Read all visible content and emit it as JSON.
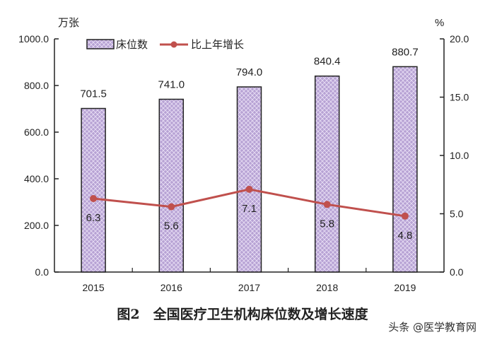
{
  "chart_data": {
    "type": "bar+line",
    "title": "图2　全国医疗卫生机构床位数及增长速度",
    "categories": [
      "2015",
      "2016",
      "2017",
      "2018",
      "2019"
    ],
    "series": [
      {
        "name": "床位数",
        "type": "bar",
        "axis": "left",
        "values": [
          701.5,
          741.0,
          794.0,
          840.4,
          880.7
        ],
        "labels": [
          "701.5",
          "741.0",
          "794.0",
          "840.4",
          "880.7"
        ],
        "color": "#b7a2d4"
      },
      {
        "name": "比上年增长",
        "type": "line",
        "axis": "right",
        "values": [
          6.3,
          5.6,
          7.1,
          5.8,
          4.8
        ],
        "labels": [
          "6.3",
          "5.6",
          "7.1",
          "5.8",
          "4.8"
        ],
        "color": "#c0504d"
      }
    ],
    "left_axis": {
      "unit": "万张",
      "ylim": [
        0,
        1000
      ],
      "ticks": [
        "0.0",
        "200.0",
        "400.0",
        "600.0",
        "800.0",
        "1000.0"
      ]
    },
    "right_axis": {
      "unit": "%",
      "ylim": [
        0,
        20
      ],
      "ticks": [
        "0.0",
        "5.0",
        "10.0",
        "15.0",
        "20.0"
      ]
    },
    "legend": {
      "placement": "top-left",
      "items": [
        "床位数",
        "比上年增长"
      ]
    },
    "grid": false
  },
  "watermark": "头条 @医学教育网"
}
